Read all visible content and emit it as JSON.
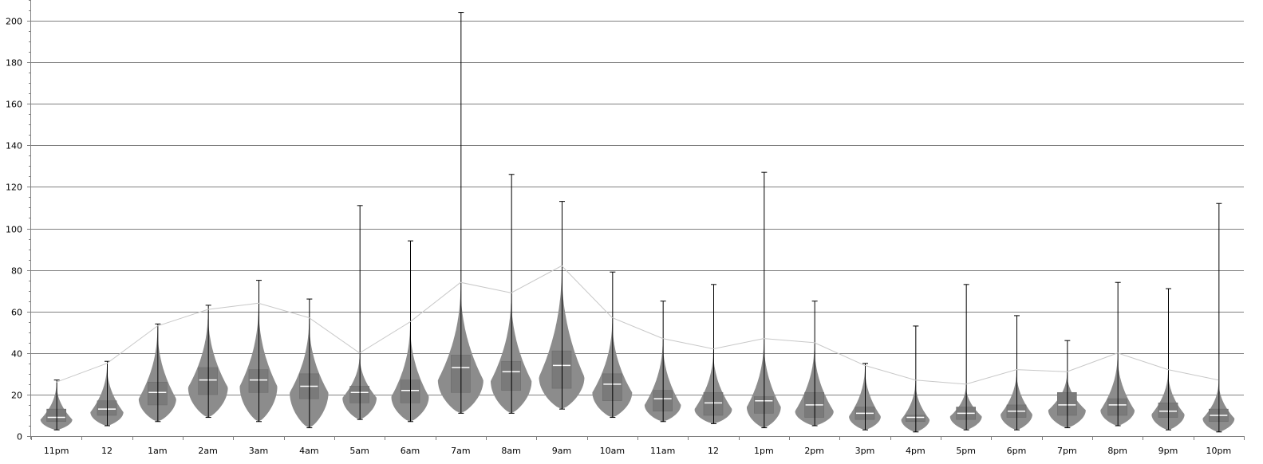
{
  "chart_data": {
    "type": "violin",
    "title": "",
    "xlabel": "",
    "ylabel": "",
    "ylim": [
      0,
      210
    ],
    "y_ticks": [
      0,
      20,
      40,
      60,
      80,
      100,
      120,
      140,
      160,
      180,
      200
    ],
    "y_tick_labels": [
      "0",
      "20",
      "40",
      "60",
      "80",
      "100",
      "120",
      "140",
      "160",
      "180",
      "200"
    ],
    "grid": "horizontal",
    "legend": "none",
    "colors": {
      "violin": "#8c8c8c",
      "box": "#7a7a7a",
      "median": "#ffffff",
      "whisker": "#000000",
      "trend": "#c8c8c8",
      "grid": "#808080"
    },
    "categories": [
      "11pm",
      "12",
      "1am",
      "2am",
      "3am",
      "4am",
      "5am",
      "6am",
      "7am",
      "8am",
      "9am",
      "10am",
      "11am",
      "12",
      "1pm",
      "2pm",
      "3pm",
      "4pm",
      "5pm",
      "6pm",
      "7pm",
      "8pm",
      "9pm",
      "10pm"
    ],
    "series": [
      {
        "min": 3,
        "q1": 7,
        "median": 9,
        "q3": 13,
        "max": 27,
        "top": 26
      },
      {
        "min": 5,
        "q1": 10,
        "median": 13,
        "q3": 17,
        "max": 36,
        "top": 35
      },
      {
        "min": 7,
        "q1": 15,
        "median": 21,
        "q3": 26,
        "max": 54,
        "top": 53
      },
      {
        "min": 9,
        "q1": 20,
        "median": 27,
        "q3": 33,
        "max": 63,
        "top": 61
      },
      {
        "min": 7,
        "q1": 21,
        "median": 27,
        "q3": 32,
        "max": 75,
        "top": 64
      },
      {
        "min": 4,
        "q1": 18,
        "median": 24,
        "q3": 30,
        "max": 66,
        "top": 57
      },
      {
        "min": 8,
        "q1": 16,
        "median": 21,
        "q3": 24,
        "max": 111,
        "top": 40
      },
      {
        "min": 7,
        "q1": 16,
        "median": 22,
        "q3": 27,
        "max": 94,
        "top": 55
      },
      {
        "min": 11,
        "q1": 21,
        "median": 33,
        "q3": 39,
        "max": 204,
        "top": 74
      },
      {
        "min": 11,
        "q1": 22,
        "median": 31,
        "q3": 36,
        "max": 126,
        "top": 69
      },
      {
        "min": 13,
        "q1": 23,
        "median": 34,
        "q3": 41,
        "max": 113,
        "top": 82
      },
      {
        "min": 9,
        "q1": 17,
        "median": 25,
        "q3": 30,
        "max": 79,
        "top": 57
      },
      {
        "min": 7,
        "q1": 12,
        "median": 18,
        "q3": 22,
        "max": 65,
        "top": 47
      },
      {
        "min": 6,
        "q1": 10,
        "median": 16,
        "q3": 21,
        "max": 73,
        "top": 42
      },
      {
        "min": 4,
        "q1": 11,
        "median": 17,
        "q3": 19,
        "max": 127,
        "top": 47
      },
      {
        "min": 5,
        "q1": 9,
        "median": 15,
        "q3": 21,
        "max": 65,
        "top": 45
      },
      {
        "min": 3,
        "q1": 8,
        "median": 11,
        "q3": 14,
        "max": 35,
        "top": 34
      },
      {
        "min": 2,
        "q1": 7,
        "median": 9,
        "q3": 10,
        "max": 53,
        "top": 27
      },
      {
        "min": 3,
        "q1": 8,
        "median": 11,
        "q3": 14,
        "max": 73,
        "top": 25
      },
      {
        "min": 3,
        "q1": 9,
        "median": 12,
        "q3": 15,
        "max": 58,
        "top": 32
      },
      {
        "min": 4,
        "q1": 10,
        "median": 15,
        "q3": 21,
        "max": 46,
        "top": 31
      },
      {
        "min": 5,
        "q1": 10,
        "median": 15,
        "q3": 18,
        "max": 74,
        "top": 40
      },
      {
        "min": 3,
        "q1": 9,
        "median": 12,
        "q3": 16,
        "max": 71,
        "top": 32
      },
      {
        "min": 2,
        "q1": 7,
        "median": 10,
        "q3": 13,
        "max": 112,
        "top": 27
      }
    ]
  }
}
